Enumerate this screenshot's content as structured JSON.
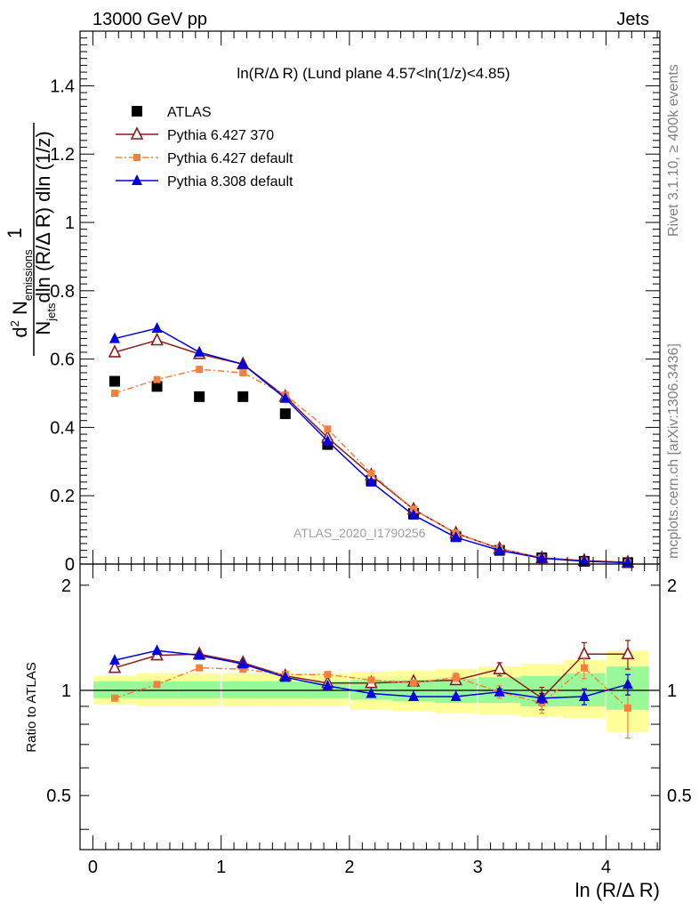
{
  "header": {
    "left": "13000 GeV pp",
    "right": "Jets"
  },
  "side_labels": {
    "rivet": "Rivet 3.1.10, ≥ 400k events",
    "mcplots": "mcplots.cern.ch [arXiv:1306.3436]"
  },
  "watermark": "ATLAS_2020_I1790256",
  "chart_data": {
    "type": "scatter",
    "title": "ln(R/Δ R) (Lund plane 4.57<ln(1/z)<4.85)",
    "xlabel": "ln (R/Δ R)",
    "ylabel": {
      "d": "d",
      "exp2": "2",
      "N": "N",
      "sub_emissions": "emissions",
      "num_rest": "dln (R/Δ R) dln (1/z)",
      "den_sub": "jets",
      "numerator": "1"
    },
    "ratio_ylabel": "Ratio to ATLAS",
    "xlim": [
      -0.1,
      4.42
    ],
    "ylim_main": [
      0,
      1.56
    ],
    "ylim_ratio": [
      0.35,
      2.3
    ],
    "x_ticks": [
      "0",
      "1",
      "2",
      "3",
      "4"
    ],
    "y_ticks_main": [
      "0",
      "0.2",
      "0.4",
      "0.6",
      "0.8",
      "1",
      "1.2",
      "1.4"
    ],
    "y_ticks_ratio": [
      "0.5",
      "1",
      "2"
    ],
    "x": [
      0.17,
      0.5,
      0.83,
      1.17,
      1.5,
      1.83,
      2.17,
      2.5,
      2.83,
      3.17,
      3.5,
      3.83,
      4.17
    ],
    "data_band": {
      "green_low": [
        0.95,
        0.95,
        0.95,
        0.95,
        0.95,
        0.95,
        0.94,
        0.93,
        0.92,
        0.92,
        0.9,
        0.9,
        0.88
      ],
      "green_high": [
        1.06,
        1.06,
        1.06,
        1.06,
        1.06,
        1.06,
        1.07,
        1.07,
        1.08,
        1.09,
        1.1,
        1.12,
        1.17
      ],
      "yellow_low": [
        0.91,
        0.9,
        0.9,
        0.9,
        0.9,
        0.9,
        0.88,
        0.87,
        0.86,
        0.85,
        0.84,
        0.83,
        0.76
      ],
      "yellow_high": [
        1.1,
        1.12,
        1.12,
        1.12,
        1.12,
        1.12,
        1.13,
        1.14,
        1.15,
        1.17,
        1.19,
        1.22,
        1.3
      ]
    },
    "series": [
      {
        "name": "ATLAS",
        "color": "#000000",
        "marker": "square",
        "values": [
          0.535,
          0.52,
          0.49,
          0.49,
          0.44,
          0.35,
          0.245,
          0.148,
          0.08,
          0.04,
          0.018,
          0.008,
          0.004
        ]
      },
      {
        "name": "Pythia 6.427 370",
        "color": "#8c1a1a",
        "marker": "open-triangle",
        "values": [
          0.62,
          0.655,
          0.615,
          0.585,
          0.49,
          0.37,
          0.26,
          0.16,
          0.09,
          0.045,
          0.018,
          0.01,
          0.005
        ],
        "ratio": [
          1.16,
          1.26,
          1.27,
          1.2,
          1.1,
          1.05,
          1.05,
          1.06,
          1.07,
          1.15,
          0.95,
          1.27,
          1.27
        ],
        "ratio_err": [
          0,
          0,
          0,
          0,
          0,
          0,
          0,
          0,
          0.03,
          0.05,
          0.07,
          0.1,
          0.12
        ]
      },
      {
        "name": "Pythia 6.427 default",
        "color": "#f5803e",
        "marker": "square",
        "dashed": true,
        "values": [
          0.5,
          0.54,
          0.57,
          0.56,
          0.495,
          0.395,
          0.265,
          0.16,
          0.09,
          0.045,
          0.018,
          0.009,
          0.004
        ],
        "ratio": [
          0.95,
          1.04,
          1.16,
          1.15,
          1.11,
          1.11,
          1.07,
          1.05,
          1.09,
          0.99,
          0.92,
          1.16,
          0.89
        ],
        "ratio_err": [
          0,
          0,
          0,
          0,
          0,
          0.01,
          0.015,
          0.02,
          0.03,
          0.04,
          0.06,
          0.08,
          0.16
        ]
      },
      {
        "name": "Pythia 8.308 default",
        "color": "#0000e0",
        "marker": "triangle",
        "values": [
          0.66,
          0.69,
          0.62,
          0.585,
          0.485,
          0.36,
          0.24,
          0.143,
          0.078,
          0.04,
          0.017,
          0.008,
          0.004
        ],
        "ratio": [
          1.22,
          1.3,
          1.26,
          1.19,
          1.09,
          1.03,
          0.98,
          0.96,
          0.96,
          0.99,
          0.95,
          0.96,
          1.04
        ],
        "ratio_err": [
          0,
          0,
          0,
          0,
          0,
          0,
          0,
          0,
          0.01,
          0.02,
          0.03,
          0.05,
          0.07
        ]
      }
    ],
    "legend_position": "top-left"
  }
}
